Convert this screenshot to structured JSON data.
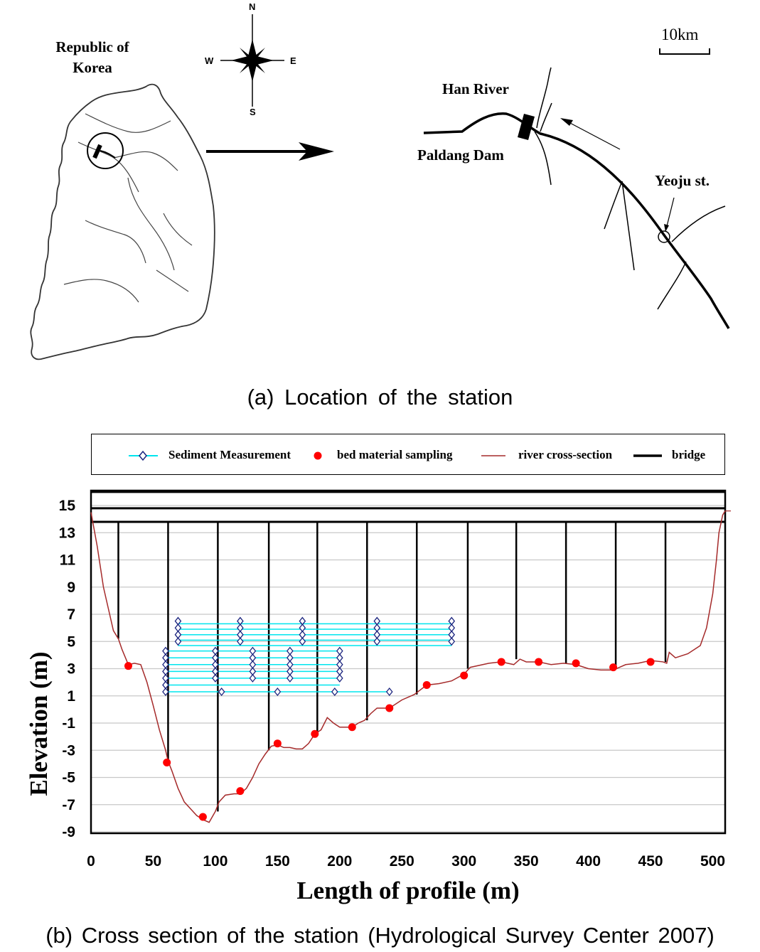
{
  "map": {
    "korea_label_line1": "Republic of",
    "korea_label_line2": "Korea",
    "compass": {
      "n": "N",
      "s": "S",
      "e": "E",
      "w": "W"
    },
    "scale_label": "10km",
    "han_river_label": "Han River",
    "dam_label": "Paldang Dam",
    "station_label": "Yeoju st.",
    "caption": "(a) Location of the station"
  },
  "chart_data": {
    "type": "line",
    "caption": "(b) Cross section of the station (Hydrological Survey Center 2007)",
    "xlabel": "Length of profile (m)",
    "ylabel": "Elevation (m)",
    "xlim": [
      0,
      510
    ],
    "ylim": [
      -9,
      16
    ],
    "x_ticks": [
      "0",
      "50",
      "100",
      "150",
      "200",
      "250",
      "300",
      "350",
      "400",
      "450",
      "500"
    ],
    "y_ticks": [
      "15",
      "13",
      "11",
      "9",
      "7",
      "5",
      "3",
      "1",
      "-1",
      "-3",
      "-5",
      "-7",
      "-9"
    ],
    "grid": "horizontal",
    "legend_position": "top",
    "colors": {
      "river": "#a52a2a",
      "bed": "#ff0000",
      "sediment_line": "#00e5ee",
      "sediment_marker": "#1a237e",
      "bridge": "#000000"
    },
    "legend": [
      "Sediment Measurement",
      "bed material sampling",
      "river cross-section",
      "bridge"
    ],
    "series": [
      {
        "name": "river cross-section",
        "x": [
          0,
          5,
          10,
          15,
          18,
          22,
          25,
          30,
          35,
          40,
          45,
          50,
          55,
          60,
          62,
          65,
          70,
          75,
          80,
          85,
          90,
          95,
          100,
          103,
          108,
          115,
          120,
          125,
          130,
          135,
          140,
          145,
          150,
          155,
          160,
          165,
          170,
          175,
          180,
          185,
          190,
          195,
          200,
          205,
          210,
          215,
          220,
          225,
          230,
          235,
          240,
          250,
          260,
          270,
          280,
          290,
          300,
          305,
          320,
          330,
          340,
          345,
          350,
          360,
          370,
          380,
          390,
          400,
          410,
          420,
          430,
          440,
          450,
          460,
          463,
          465,
          470,
          480,
          490,
          495,
          500,
          503,
          505,
          508,
          510
        ],
        "y": [
          14.5,
          12,
          9,
          7,
          5.8,
          5.2,
          4.4,
          3.3,
          3.4,
          3.3,
          2,
          0.3,
          -1.5,
          -3,
          -3.8,
          -4.5,
          -5.8,
          -6.8,
          -7.3,
          -7.8,
          -8.1,
          -8.3,
          -7.5,
          -6.8,
          -6.3,
          -6.2,
          -6.2,
          -5.8,
          -5,
          -4,
          -3.3,
          -2.7,
          -2.6,
          -2.8,
          -2.8,
          -2.9,
          -2.9,
          -2.5,
          -1.8,
          -1.5,
          -0.6,
          -1,
          -1.3,
          -1.3,
          -1.3,
          -1,
          -0.8,
          -0.3,
          0.1,
          0.1,
          0.1,
          0.7,
          1.1,
          1.8,
          1.9,
          2.1,
          2.6,
          3.1,
          3.4,
          3.5,
          3.3,
          3.7,
          3.5,
          3.5,
          3.3,
          3.4,
          3.3,
          3,
          2.9,
          2.9,
          3.3,
          3.4,
          3.6,
          3.5,
          3.4,
          4.2,
          3.8,
          4.1,
          4.7,
          6,
          8.5,
          11,
          13,
          14.3,
          14.6
        ]
      },
      {
        "name": "bed material sampling",
        "x": [
          30,
          61,
          90,
          120,
          150,
          180,
          210,
          240,
          270,
          300,
          330,
          360,
          390,
          420,
          450
        ],
        "y": [
          3.2,
          -3.9,
          -7.9,
          -6,
          -2.5,
          -1.8,
          -1.3,
          0.1,
          1.8,
          2.5,
          3.5,
          3.5,
          3.4,
          3.1,
          3.5
        ]
      },
      {
        "name": "Sediment Measurement",
        "verticals": [
          {
            "x": 60,
            "y": [
              1.3,
              1.8,
              2.3,
              2.8,
              3.3,
              3.8,
              4.3
            ]
          },
          {
            "x": 70,
            "y": [
              5,
              5.5,
              6,
              6.5
            ]
          },
          {
            "x": 100,
            "y": [
              2.3,
              2.8,
              3.3,
              3.8,
              4.3
            ]
          },
          {
            "x": 105,
            "y": [
              1.3
            ]
          },
          {
            "x": 120,
            "y": [
              5,
              5.5,
              6,
              6.5
            ]
          },
          {
            "x": 130,
            "y": [
              2.3,
              2.8,
              3.3,
              3.8,
              4.3
            ]
          },
          {
            "x": 150,
            "y": [
              1.3
            ]
          },
          {
            "x": 160,
            "y": [
              2.3,
              2.8,
              3.3,
              3.8,
              4.3
            ]
          },
          {
            "x": 170,
            "y": [
              5,
              5.5,
              6,
              6.5
            ]
          },
          {
            "x": 196,
            "y": [
              1.3
            ]
          },
          {
            "x": 200,
            "y": [
              2.3,
              2.8,
              3.3,
              3.8,
              4.3
            ]
          },
          {
            "x": 230,
            "y": [
              5,
              5.5,
              6,
              6.5
            ]
          },
          {
            "x": 240,
            "y": [
              1.3
            ]
          },
          {
            "x": 290,
            "y": [
              5,
              5.5,
              6,
              6.5
            ]
          }
        ],
        "rows": [
          {
            "y": 6.3,
            "x": [
              70,
              290
            ]
          },
          {
            "y": 5.9,
            "x": [
              70,
              290
            ]
          },
          {
            "y": 5.5,
            "x": [
              70,
              290
            ]
          },
          {
            "y": 5.1,
            "x": [
              70,
              290
            ]
          },
          {
            "y": 4.7,
            "x": [
              70,
              290
            ]
          },
          {
            "y": 4.3,
            "x": [
              60,
              200
            ]
          },
          {
            "y": 3.8,
            "x": [
              60,
              200
            ]
          },
          {
            "y": 3.3,
            "x": [
              60,
              200
            ]
          },
          {
            "y": 2.8,
            "x": [
              60,
              200
            ]
          },
          {
            "y": 2.3,
            "x": [
              60,
              200
            ]
          },
          {
            "y": 1.8,
            "x": [
              60,
              200
            ]
          },
          {
            "y": 1.3,
            "x": [
              60,
              240
            ]
          }
        ]
      },
      {
        "name": "bridge",
        "deck_y": [
          16,
          14.8,
          13.8
        ],
        "piers": [
          {
            "x": 22,
            "bottom": 5.2
          },
          {
            "x": 62,
            "bottom": -3.8
          },
          {
            "x": 102,
            "bottom": -7.5
          },
          {
            "x": 143,
            "bottom": -3
          },
          {
            "x": 182,
            "bottom": -1.8
          },
          {
            "x": 222,
            "bottom": -0.8
          },
          {
            "x": 262,
            "bottom": 1.1
          },
          {
            "x": 303,
            "bottom": 3
          },
          {
            "x": 342,
            "bottom": 3.7
          },
          {
            "x": 382,
            "bottom": 3.4
          },
          {
            "x": 422,
            "bottom": 3.1
          },
          {
            "x": 462,
            "bottom": 3.5
          }
        ]
      }
    ]
  }
}
